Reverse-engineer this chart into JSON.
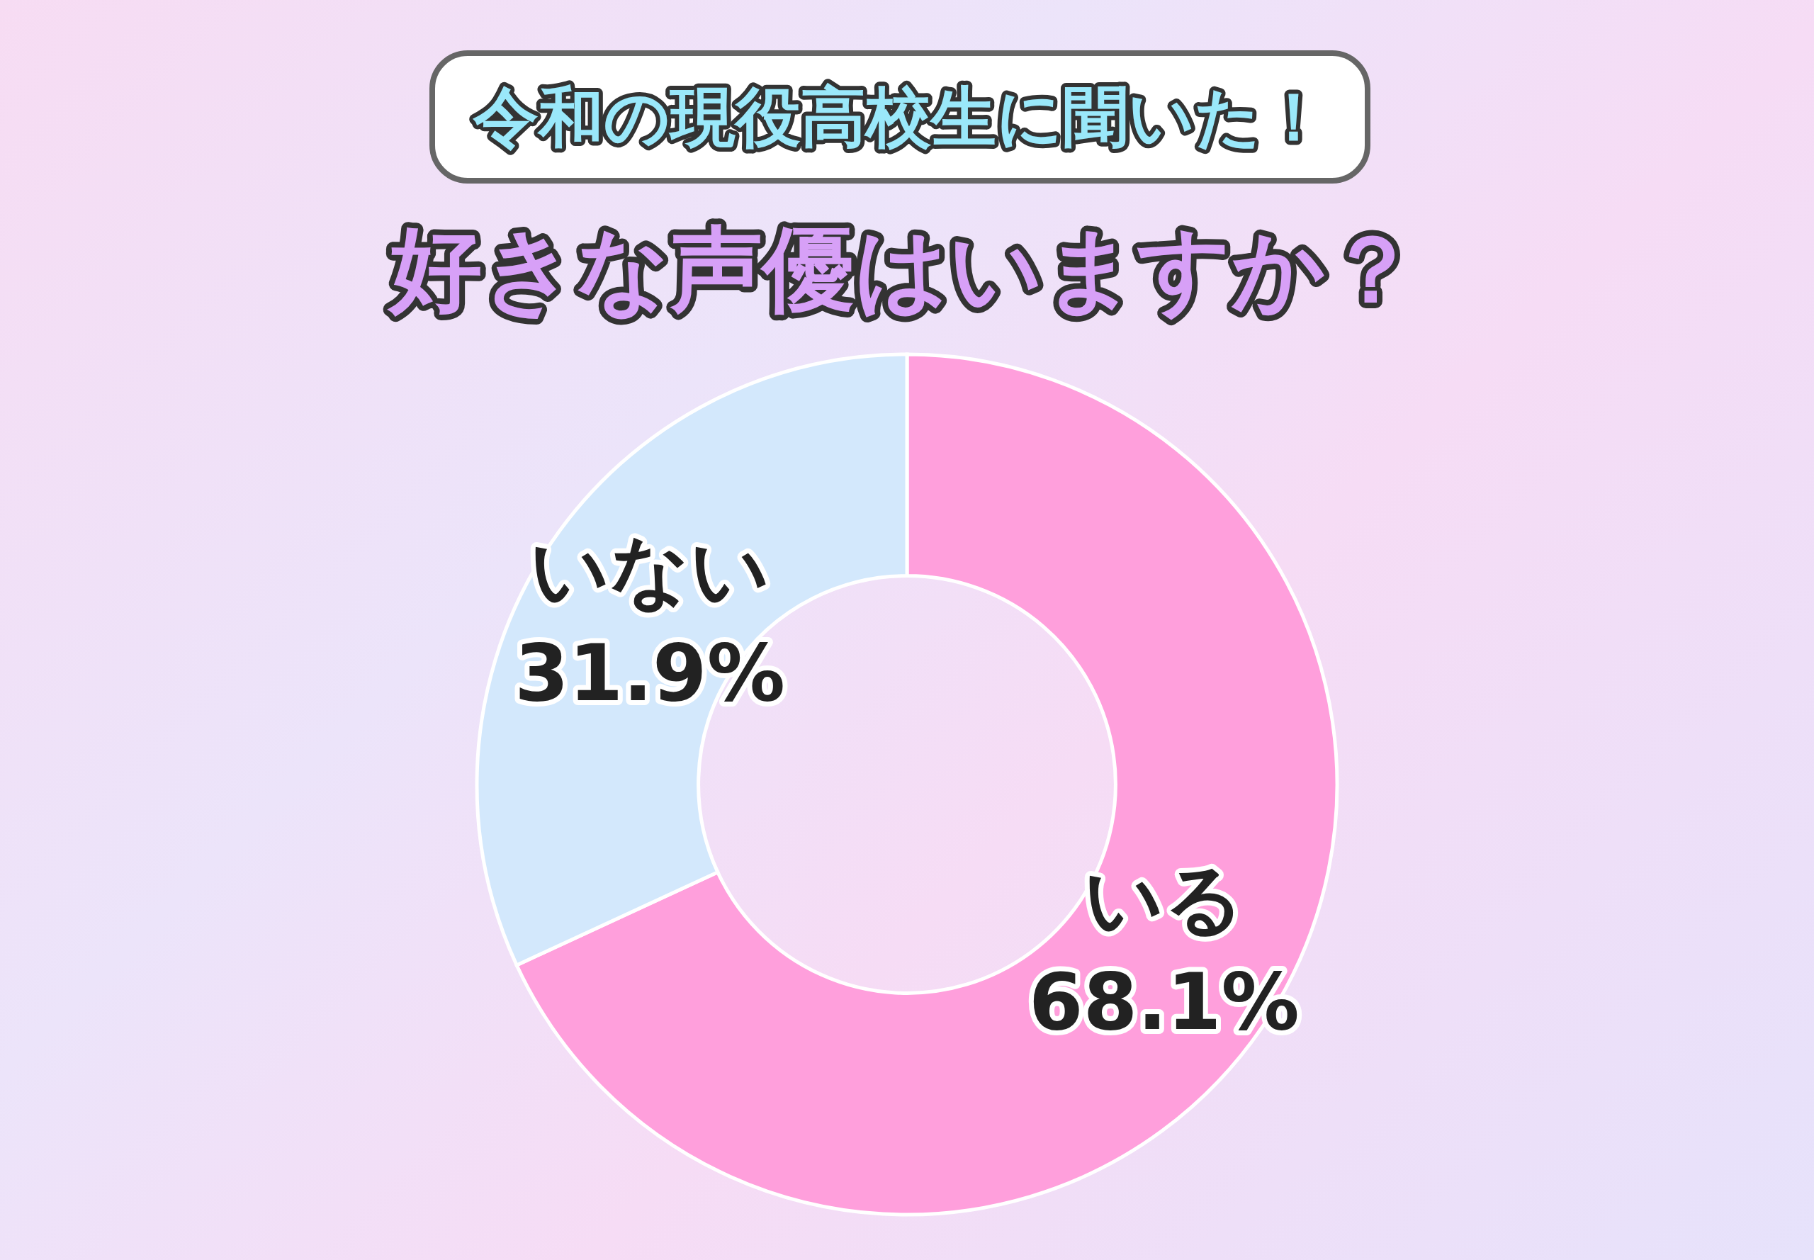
{
  "chart_data": {
    "type": "donut",
    "title": "令和の現役高校生に聞いた！",
    "subtitle": "好きな声優はいますか？",
    "categories": [
      "いる",
      "いない"
    ],
    "values": [
      68.1,
      31.9
    ],
    "colors": [
      "#ff9fdc",
      "#d3e8fc"
    ],
    "value_labels": [
      "68.1%",
      "31.9%"
    ]
  }
}
